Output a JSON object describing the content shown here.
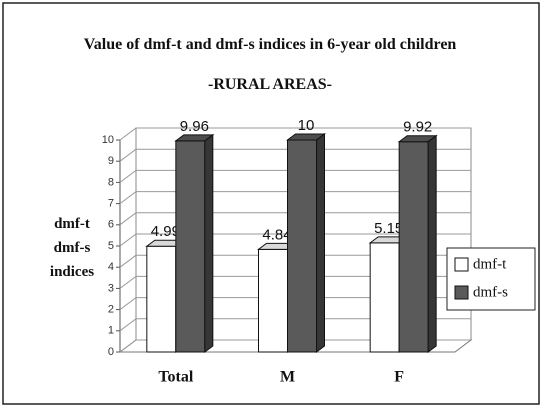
{
  "chart_data": {
    "type": "bar3d",
    "title": "Value of dmf-t and dmf-s indices in 6-year old children",
    "subtitle": "-RURAL AREAS-",
    "y_label": "dmf-t dmf-s indices",
    "categories": [
      "Total",
      "M",
      "F"
    ],
    "series": [
      {
        "name": "dmf-t",
        "color": "#ffffff",
        "values": [
          4.99,
          4.84,
          5.15
        ]
      },
      {
        "name": "dmf-s",
        "color": "#5a5a5a",
        "values": [
          9.96,
          10,
          9.92
        ]
      }
    ],
    "ylim": [
      0,
      10
    ],
    "yticks": [
      0,
      1,
      2,
      3,
      4,
      5,
      6,
      7,
      8,
      9,
      10
    ],
    "grid": true,
    "legend": "right"
  }
}
